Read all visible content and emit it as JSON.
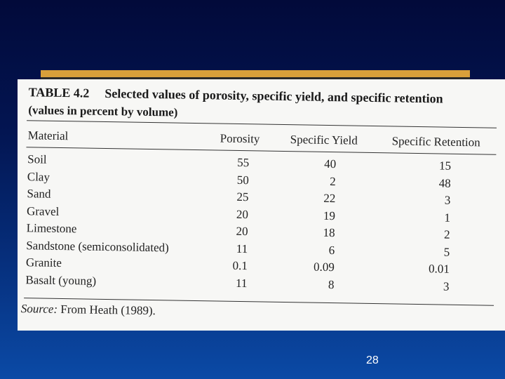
{
  "table": {
    "number": "TABLE 4.2",
    "title": "Selected values of porosity, specific yield, and specific retention",
    "subtitle": "(values in percent by volume)",
    "columns": [
      "Material",
      "Porosity",
      "Specific Yield",
      "Specific Retention"
    ],
    "rows": [
      [
        "Soil",
        "55",
        "40",
        "15"
      ],
      [
        "Clay",
        "50",
        "2",
        "48"
      ],
      [
        "Sand",
        "25",
        "22",
        "3"
      ],
      [
        "Gravel",
        "20",
        "19",
        "1"
      ],
      [
        "Limestone",
        "20",
        "18",
        "2"
      ],
      [
        "Sandstone (semiconsolidated)",
        "11",
        "6",
        "5"
      ],
      [
        "Granite",
        "0.1",
        "0.09",
        "0.01"
      ],
      [
        "Basalt (young)",
        "11",
        "8",
        "3"
      ]
    ],
    "source_label": "Source:",
    "source_text": "From Heath (1989)."
  },
  "slide": {
    "page_number": "28"
  }
}
